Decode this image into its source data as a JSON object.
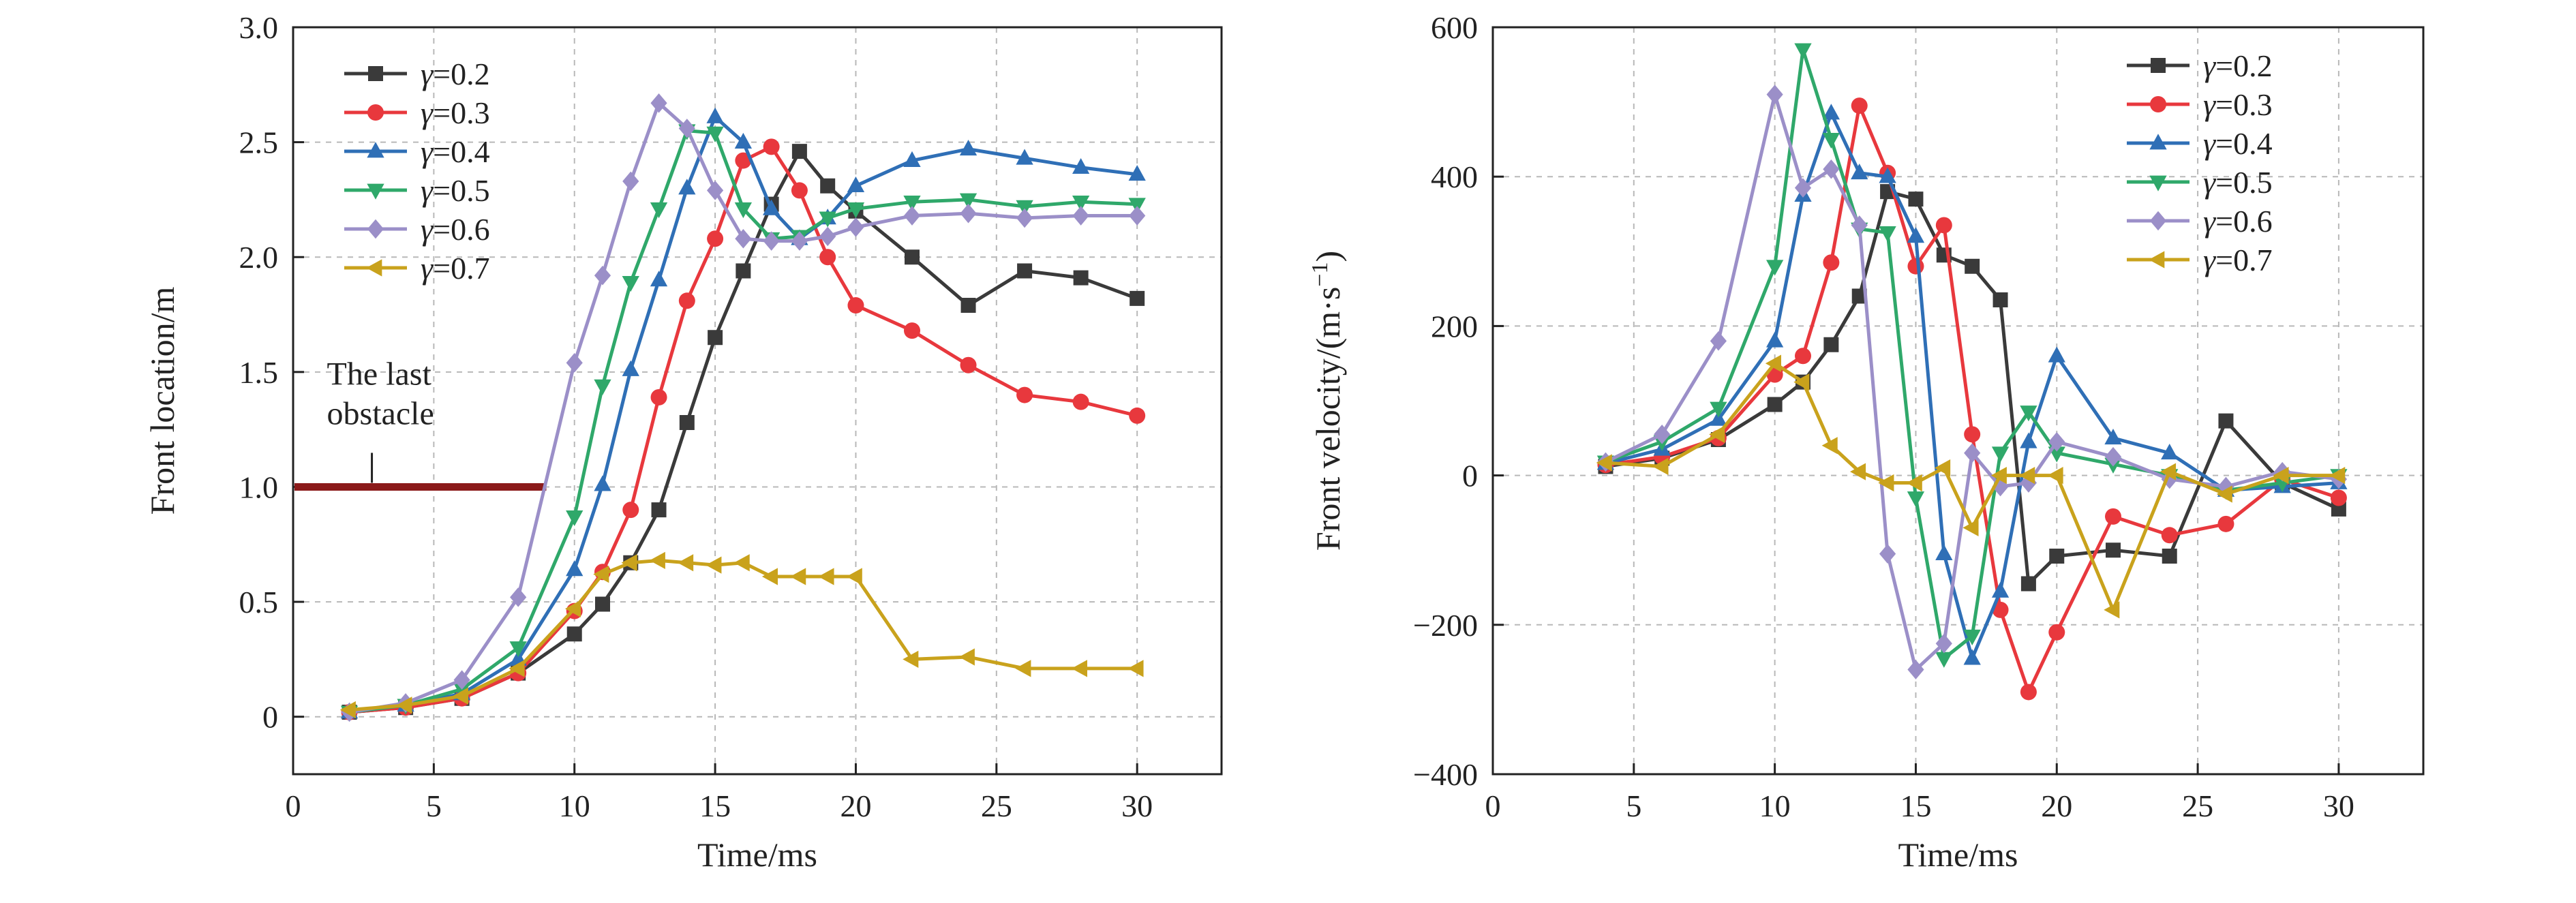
{
  "colors": {
    "gamma_0.2": "#3a3a3a",
    "gamma_0.3": "#e8383d",
    "gamma_0.4": "#2f6fb6",
    "gamma_0.5": "#2fa86a",
    "gamma_0.6": "#9b8fc8",
    "gamma_0.7": "#c9a21c",
    "obstacle": "#8b1a1a"
  },
  "chart_data": [
    {
      "type": "line",
      "xlabel": "Time/ms",
      "ylabel": "Front location/m",
      "xlim": [
        0,
        33
      ],
      "ylim": [
        -0.25,
        3.0
      ],
      "xticks": [
        "0",
        "5",
        "10",
        "15",
        "20",
        "25",
        "30"
      ],
      "yticks": [
        "0",
        "0.5",
        "1.0",
        "1.5",
        "2.0",
        "2.5",
        "3.0"
      ],
      "grid": "dashed",
      "legend": "top-left",
      "annotation": {
        "line1": "The last",
        "line2": "obstacle",
        "y": 1.0,
        "x_range": [
          0,
          9
        ]
      },
      "series": [
        {
          "name_prefix": "γ",
          "name_value": "=0.2",
          "marker": "square",
          "x": [
            2,
            4,
            6,
            8,
            10,
            11,
            12,
            13,
            14,
            15,
            16,
            17,
            18,
            19,
            20,
            22,
            24,
            26,
            28,
            30
          ],
          "y": [
            0.02,
            0.04,
            0.08,
            0.19,
            0.36,
            0.49,
            0.67,
            0.9,
            1.28,
            1.65,
            1.94,
            2.23,
            2.46,
            2.31,
            2.2,
            2.0,
            1.79,
            1.94,
            1.91,
            1.82
          ]
        },
        {
          "name_prefix": "γ",
          "name_value": "=0.3",
          "marker": "circle",
          "x": [
            2,
            4,
            6,
            8,
            10,
            11,
            12,
            13,
            14,
            15,
            16,
            17,
            18,
            19,
            20,
            22,
            24,
            26,
            28,
            30
          ],
          "y": [
            0.02,
            0.04,
            0.08,
            0.19,
            0.46,
            0.63,
            0.9,
            1.39,
            1.81,
            2.08,
            2.42,
            2.48,
            2.29,
            2.0,
            1.79,
            1.68,
            1.53,
            1.4,
            1.37,
            1.31
          ]
        },
        {
          "name_prefix": "γ",
          "name_value": "=0.4",
          "marker": "triangle-up",
          "x": [
            2,
            4,
            6,
            8,
            10,
            11,
            12,
            13,
            14,
            15,
            16,
            17,
            18,
            19,
            20,
            22,
            24,
            26,
            28,
            30
          ],
          "y": [
            0.02,
            0.05,
            0.1,
            0.25,
            0.64,
            1.01,
            1.51,
            1.9,
            2.3,
            2.61,
            2.5,
            2.21,
            2.08,
            2.17,
            2.31,
            2.42,
            2.47,
            2.43,
            2.39,
            2.36
          ]
        },
        {
          "name_prefix": "γ",
          "name_value": "=0.5",
          "marker": "triangle-down",
          "x": [
            2,
            4,
            6,
            8,
            10,
            11,
            12,
            13,
            14,
            15,
            16,
            17,
            18,
            19,
            20,
            22,
            24,
            26,
            28,
            30
          ],
          "y": [
            0.02,
            0.05,
            0.12,
            0.3,
            0.87,
            1.44,
            1.89,
            2.21,
            2.55,
            2.54,
            2.21,
            2.08,
            2.09,
            2.17,
            2.21,
            2.24,
            2.25,
            2.22,
            2.24,
            2.23
          ]
        },
        {
          "name_prefix": "γ",
          "name_value": "=0.6",
          "marker": "diamond",
          "x": [
            2,
            4,
            6,
            8,
            10,
            11,
            12,
            13,
            14,
            15,
            16,
            17,
            18,
            19,
            20,
            22,
            24,
            26,
            28,
            30
          ],
          "y": [
            0.02,
            0.06,
            0.16,
            0.52,
            1.54,
            1.92,
            2.33,
            2.67,
            2.56,
            2.29,
            2.08,
            2.07,
            2.07,
            2.09,
            2.13,
            2.18,
            2.19,
            2.17,
            2.18,
            2.18
          ]
        },
        {
          "name_prefix": "γ",
          "name_value": "=0.7",
          "marker": "triangle-left",
          "x": [
            2,
            4,
            6,
            8,
            10,
            11,
            12,
            13,
            14,
            15,
            16,
            17,
            18,
            19,
            20,
            22,
            24,
            26,
            28,
            30
          ],
          "y": [
            0.03,
            0.05,
            0.09,
            0.21,
            0.47,
            0.62,
            0.67,
            0.68,
            0.67,
            0.66,
            0.67,
            0.61,
            0.61,
            0.61,
            0.61,
            0.25,
            0.26,
            0.21,
            0.21,
            0.21
          ]
        }
      ]
    },
    {
      "type": "line",
      "xlabel": "Time/ms",
      "ylabel_main": "Front velocity/(m·s",
      "ylabel_sup": "−1",
      "ylabel_end": ")",
      "xlim": [
        0,
        33
      ],
      "ylim": [
        -400,
        600
      ],
      "xticks": [
        "0",
        "5",
        "10",
        "15",
        "20",
        "25",
        "30"
      ],
      "yticks": [
        "−400",
        "−200",
        "0",
        "200",
        "400",
        "600"
      ],
      "grid": "dashed",
      "legend": "top-right",
      "series": [
        {
          "name_prefix": "γ",
          "name_value": "=0.2",
          "marker": "square",
          "x": [
            4,
            6,
            8,
            10,
            11,
            12,
            13,
            14,
            15,
            16,
            17,
            18,
            19,
            20,
            22,
            24,
            26,
            28,
            30
          ],
          "y": [
            12,
            23,
            48,
            95,
            125,
            175,
            240,
            380,
            370,
            295,
            280,
            235,
            -145,
            -108,
            -100,
            -108,
            73,
            -10,
            -45
          ]
        },
        {
          "name_prefix": "γ",
          "name_value": "=0.3",
          "marker": "circle",
          "x": [
            4,
            6,
            8,
            10,
            11,
            12,
            13,
            14,
            15,
            16,
            17,
            18,
            19,
            20,
            22,
            24,
            26,
            28,
            30
          ],
          "y": [
            14,
            25,
            50,
            135,
            160,
            285,
            495,
            405,
            280,
            335,
            55,
            -180,
            -290,
            -210,
            -55,
            -80,
            -65,
            -5,
            -30
          ]
        },
        {
          "name_prefix": "γ",
          "name_value": "=0.4",
          "marker": "triangle-up",
          "x": [
            4,
            6,
            8,
            10,
            11,
            12,
            13,
            14,
            15,
            16,
            17,
            18,
            19,
            20,
            22,
            24,
            26,
            28,
            30
          ],
          "y": [
            16,
            35,
            75,
            180,
            375,
            485,
            405,
            400,
            320,
            -105,
            -245,
            -155,
            45,
            160,
            50,
            30,
            -20,
            -15,
            -10
          ]
        },
        {
          "name_prefix": "γ",
          "name_value": "=0.5",
          "marker": "triangle-down",
          "x": [
            4,
            6,
            8,
            10,
            11,
            12,
            13,
            14,
            15,
            16,
            17,
            18,
            19,
            20,
            22,
            24,
            26,
            28,
            30
          ],
          "y": [
            18,
            45,
            90,
            280,
            570,
            450,
            330,
            325,
            -30,
            -245,
            -215,
            30,
            85,
            30,
            15,
            0,
            -20,
            -10,
            0
          ]
        },
        {
          "name_prefix": "γ",
          "name_value": "=0.6",
          "marker": "diamond",
          "x": [
            4,
            6,
            8,
            10,
            11,
            12,
            13,
            14,
            15,
            16,
            17,
            18,
            19,
            20,
            22,
            24,
            26,
            28,
            30
          ],
          "y": [
            18,
            55,
            180,
            510,
            385,
            410,
            335,
            -105,
            -260,
            -225,
            30,
            -15,
            -10,
            45,
            25,
            -5,
            -15,
            5,
            -5
          ]
        },
        {
          "name_prefix": "γ",
          "name_value": "=0.7",
          "marker": "triangle-left",
          "x": [
            4,
            6,
            8,
            10,
            11,
            12,
            13,
            14,
            15,
            16,
            17,
            18,
            19,
            20,
            22,
            24,
            26,
            28,
            30
          ],
          "y": [
            17,
            12,
            55,
            150,
            125,
            40,
            5,
            -10,
            -10,
            10,
            -70,
            0,
            0,
            0,
            -180,
            5,
            -25,
            0,
            0
          ]
        }
      ]
    }
  ]
}
